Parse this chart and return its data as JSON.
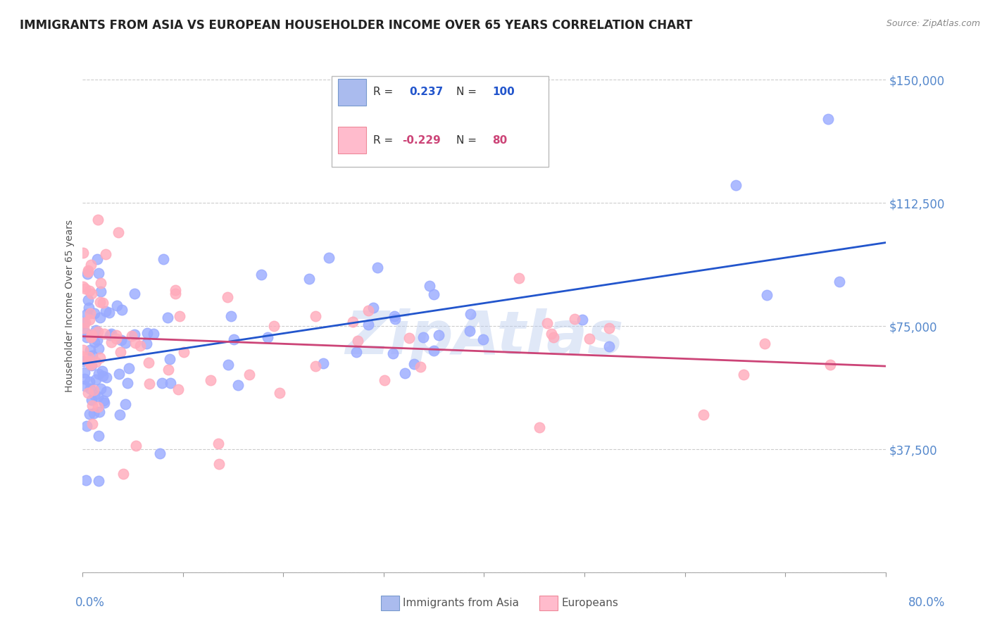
{
  "title": "IMMIGRANTS FROM ASIA VS EUROPEAN HOUSEHOLDER INCOME OVER 65 YEARS CORRELATION CHART",
  "source": "Source: ZipAtlas.com",
  "ylabel": "Householder Income Over 65 years",
  "xlim": [
    0.0,
    0.8
  ],
  "ylim": [
    0,
    162500
  ],
  "ytick_vals": [
    0,
    37500,
    75000,
    112500,
    150000
  ],
  "ytick_labels": [
    "",
    "$37,500",
    "$75,000",
    "$112,500",
    "$150,000"
  ],
  "asia_R": 0.237,
  "asia_N": 100,
  "euro_R": -0.229,
  "euro_N": 80,
  "asia_scatter_color": "#99aaff",
  "asia_line_color": "#2255cc",
  "euro_scatter_color": "#ffaabb",
  "euro_line_color": "#cc4477",
  "label_color": "#5588cc",
  "grid_color": "#cccccc",
  "watermark": "ZipAtlas",
  "watermark_color": "#bbccee"
}
